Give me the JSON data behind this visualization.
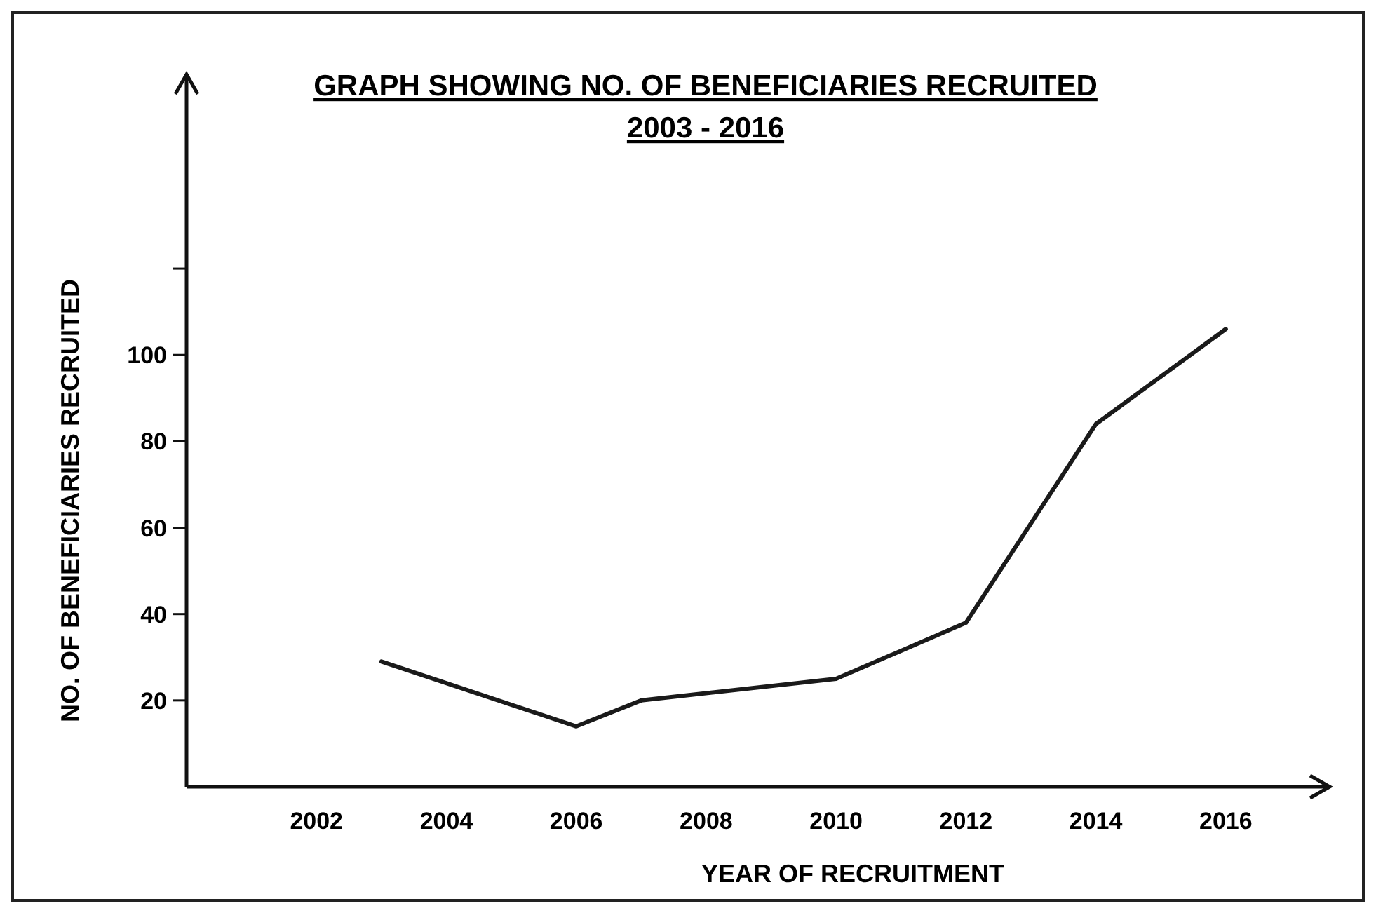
{
  "chart_data": {
    "type": "line",
    "title": "GRAPH SHOWING NO. OF BENEFICIARIES RECRUITED",
    "subtitle": "2003 - 2016",
    "xlabel": "YEAR OF RECRUITMENT",
    "ylabel": "NO. OF BENEFICIARIES RECRUITED",
    "x": [
      2003,
      2006,
      2007,
      2010,
      2012,
      2014,
      2016
    ],
    "series": [
      {
        "color": "#1a1a1a",
        "values": [
          29,
          14,
          20,
          25,
          38,
          84,
          106
        ]
      }
    ],
    "xlim": [
      2000,
      2017.6
    ],
    "xticks": [
      2002,
      2004,
      2006,
      2008,
      2010,
      2012,
      2014,
      2016
    ],
    "ylim": [
      0,
      165
    ],
    "yticks": [
      20,
      40,
      60,
      80,
      100,
      {
        "value": 120,
        "label": null
      }
    ],
    "grid": false,
    "marker": "none",
    "line_style": "solid"
  }
}
